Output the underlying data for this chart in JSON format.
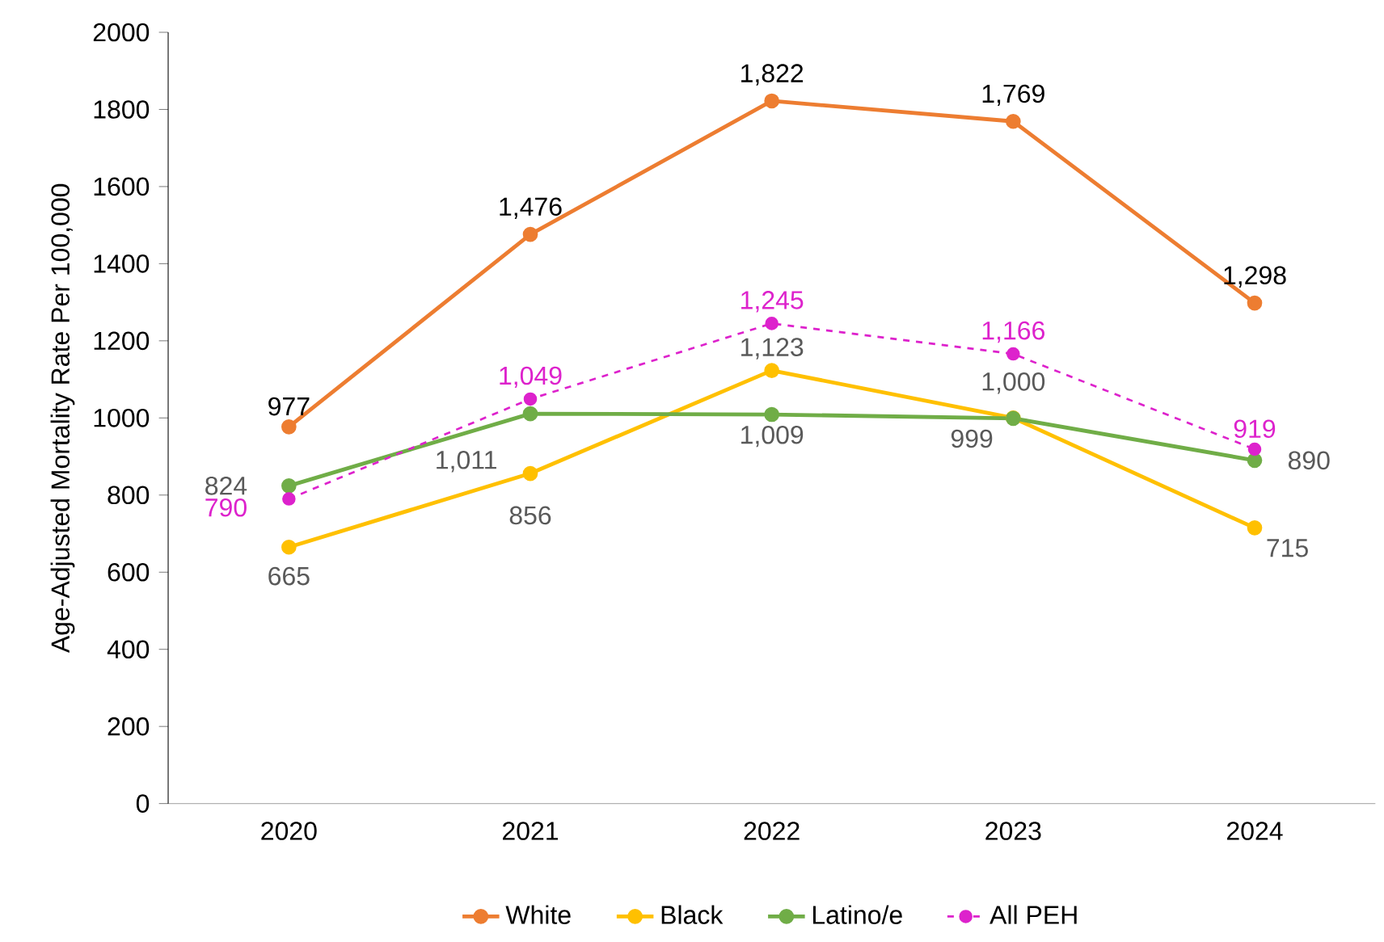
{
  "chart_data": {
    "type": "line",
    "ylabel": "Age-Adjusted Mortality Rate Per 100,000",
    "categories": [
      "2020",
      "2021",
      "2022",
      "2023",
      "2024"
    ],
    "ylim": [
      0,
      2000
    ],
    "yticks": [
      0,
      200,
      400,
      600,
      800,
      1000,
      1200,
      1400,
      1600,
      1800,
      2000
    ],
    "grid": false,
    "legend": "bottom",
    "marker": "circle",
    "series": [
      {
        "name": "White",
        "color": "#ed7d31",
        "line_style": "solid",
        "values": [
          977,
          1476,
          1822,
          1769,
          1298
        ],
        "value_labels": [
          "977",
          "1,476",
          "1,822",
          "1,769",
          "1,298"
        ]
      },
      {
        "name": "Black",
        "color": "#ffc000",
        "line_style": "solid",
        "values": [
          665,
          856,
          1123,
          1000,
          715
        ],
        "value_labels": [
          "665",
          "856",
          "1,123",
          "1,000",
          "715"
        ]
      },
      {
        "name": "Latino/e",
        "color": "#70ad47",
        "line_style": "solid",
        "values": [
          824,
          1011,
          1009,
          999,
          890
        ],
        "value_labels": [
          "824",
          "1,011",
          "1,009",
          "999",
          "890"
        ]
      },
      {
        "name": "All PEH",
        "color": "#dd22cc",
        "line_style": "dashed",
        "values": [
          790,
          1049,
          1245,
          1166,
          919
        ],
        "value_labels": [
          "790",
          "1,049",
          "1,245",
          "1,166",
          "919"
        ]
      }
    ]
  }
}
